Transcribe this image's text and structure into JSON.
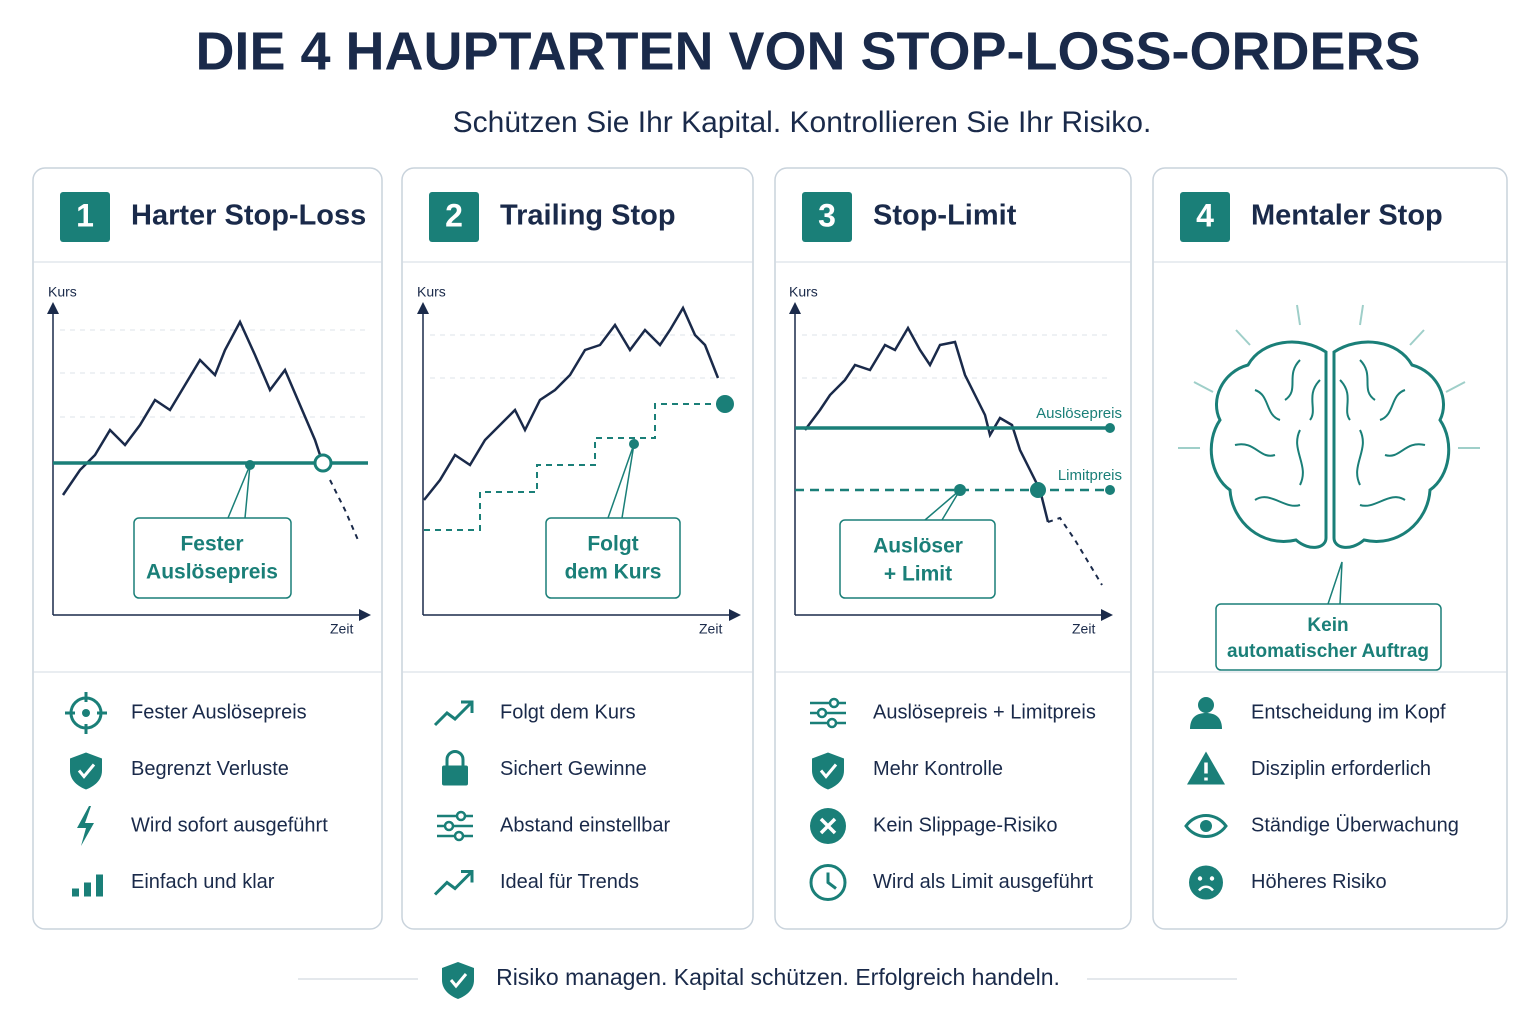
{
  "header": {
    "title": "DIE 4 HAUPTARTEN VON STOP-LOSS-ORDERS",
    "subtitle": "Schützen Sie Ihr Kapital. Kontrollieren Sie Ihr Risiko."
  },
  "cards": [
    {
      "number": "1",
      "title": "Harter Stop-Loss",
      "y_axis": "Kurs",
      "x_axis": "Zeit",
      "callout": [
        "Fester",
        "Auslösepreis"
      ],
      "features": [
        "Fester Auslösepreis",
        "Begrenzt Verluste",
        "Wird sofort ausgeführt",
        "Einfach und klar"
      ]
    },
    {
      "number": "2",
      "title": "Trailing Stop",
      "y_axis": "Kurs",
      "x_axis": "Zeit",
      "callout": [
        "Folgt",
        "dem Kurs"
      ],
      "features": [
        "Folgt dem Kurs",
        "Sichert Gewinne",
        "Abstand einstellbar",
        "Ideal für Trends"
      ]
    },
    {
      "number": "3",
      "title": "Stop-Limit",
      "y_axis": "Kurs",
      "x_axis": "Zeit",
      "line_labels": [
        "Auslösepreis",
        "Limitpreis"
      ],
      "callout": [
        "Auslöser",
        "+ Limit"
      ],
      "features": [
        "Auslösepreis + Limitpreis",
        "Mehr Kontrolle",
        "Kein Slippage-Risiko",
        "Wird als Limit ausgeführt"
      ]
    },
    {
      "number": "4",
      "title": "Mentaler Stop",
      "callout": [
        "Kein",
        "automatischer Auftrag"
      ],
      "features": [
        "Entscheidung im Kopf",
        "Disziplin erforderlich",
        "Ständige Überwachung",
        "Höheres Risiko"
      ]
    }
  ],
  "footer": "Risiko managen. Kapital schützen. Erfolgreich handeln."
}
